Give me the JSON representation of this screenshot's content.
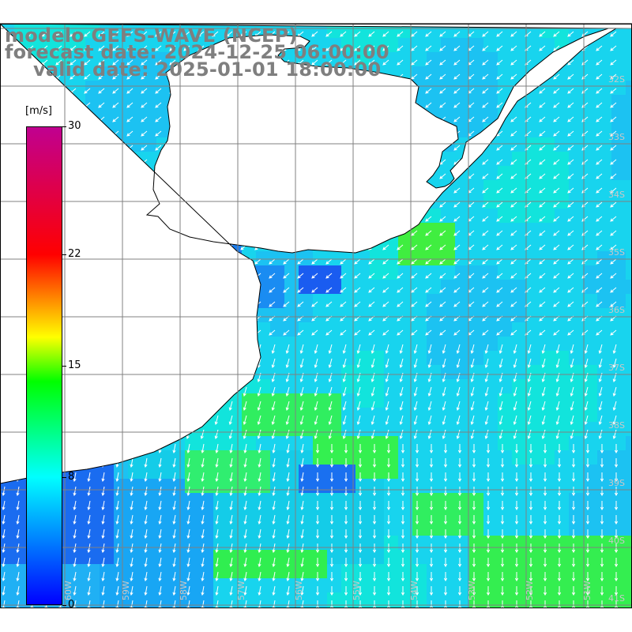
{
  "title": {
    "line1": "modelo GEFS-WAVE (NCEP)",
    "line2": "forecast date: 2024-12-25 06:00:00",
    "line3": "valid date: 2025-01-01 18:00:00"
  },
  "colorbar": {
    "unit": "[m/s]",
    "ticks": [
      {
        "label": "30",
        "value": 30
      },
      {
        "label": "22",
        "value": 22
      },
      {
        "label": "15",
        "value": 15
      },
      {
        "label": "8",
        "value": 8
      },
      {
        "label": "0",
        "value": 0
      }
    ],
    "colors": [
      "#0000ff",
      "#00ffff",
      "#00ff00",
      "#ffff00",
      "#ff0000",
      "#c00090"
    ]
  },
  "map": {
    "lat_labels": [
      "32S",
      "33S",
      "34S",
      "35S",
      "36S",
      "37S",
      "38S",
      "39S",
      "40S",
      "41S"
    ],
    "lon_labels": [
      "60W",
      "59W",
      "58W",
      "57W",
      "56W",
      "55W",
      "54W",
      "53W",
      "52W",
      "51W"
    ],
    "land_color": "#ffffff",
    "grid_color": "#808080",
    "arrow_color": "#ffffff"
  }
}
